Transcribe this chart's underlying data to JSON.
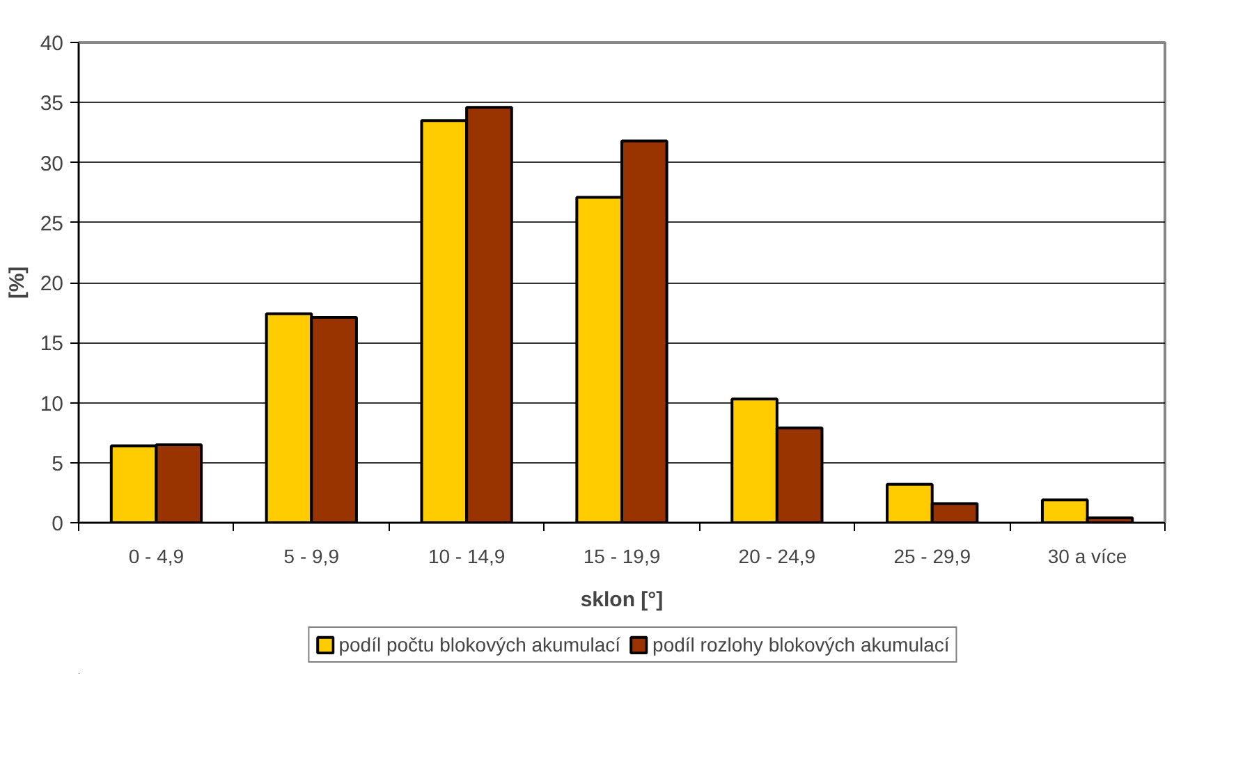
{
  "chart_data": {
    "type": "bar",
    "xlabel": "sklon [°]",
    "ylabel": "[%]",
    "categories": [
      "0 - 4,9",
      "5 - 9,9",
      "10 - 14,9",
      "15 - 19,9",
      "20 - 24,9",
      "25 - 29,9",
      "30 a více"
    ],
    "series": [
      {
        "name": "podíl počtu blokových akumulací",
        "color": "#ffcc00",
        "values": [
          6.4,
          17.4,
          33.5,
          27.1,
          10.3,
          3.2,
          1.9
        ]
      },
      {
        "name": "podíl rozlohy blokových akumulací",
        "color": "#993300",
        "values": [
          6.5,
          17.1,
          34.6,
          31.8,
          7.9,
          1.6,
          0.4
        ]
      }
    ],
    "ylim": [
      0,
      40
    ],
    "yticks": [
      0,
      5,
      10,
      15,
      20,
      25,
      30,
      35,
      40
    ],
    "grid": "y",
    "legend": "bottom"
  }
}
